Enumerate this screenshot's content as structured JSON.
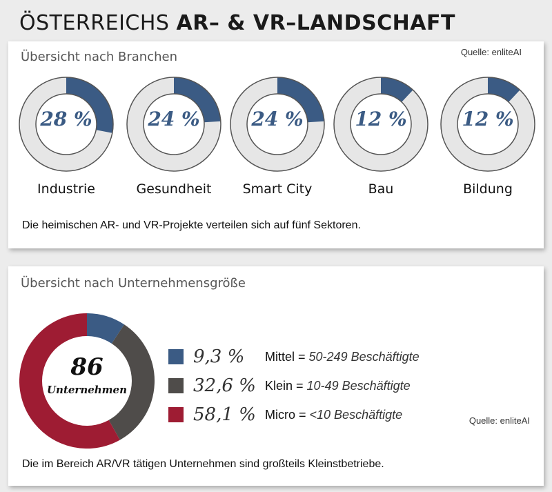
{
  "title": {
    "light": "ÖSTERREICHS",
    "bold": "AR– & VR–LANDSCHAFT"
  },
  "branchen": {
    "subtitle": "Übersicht nach Branchen",
    "source": "Quelle: enliteAI",
    "note": "Die heimischen AR- und VR-Projekte verteilen sich auf fünf Sektoren."
  },
  "groesse": {
    "subtitle": "Übersicht nach Unternehmensgröße",
    "source": "Quelle: enliteAI",
    "note": "Die im Bereich AR/VR tätigen Unternehmen sind großteils Kleinstbetriebe.",
    "center_value": "86",
    "center_label": "Unternehmen"
  },
  "chart_data": [
    {
      "type": "pie",
      "chart": "donut-grid",
      "categories": [
        "Industrie",
        "Gesundheit",
        "Smart City",
        "Bau",
        "Bildung"
      ],
      "values": [
        28,
        24,
        24,
        12,
        12
      ],
      "labels": [
        "28 %",
        "24 %",
        "24 %",
        "12 %",
        "12 %"
      ],
      "fill_color": "#3b5b84",
      "track_color": "#e6e6e6"
    },
    {
      "type": "pie",
      "chart": "donut",
      "values": [
        9.3,
        32.6,
        58.1
      ],
      "labels": [
        "9,3 %",
        "32,6 %",
        "58,1 %"
      ],
      "legend": [
        {
          "name": "Mittel",
          "range": "50-249 Beschäftigte"
        },
        {
          "name": "Klein",
          "range": "10-49 Beschäftigte"
        },
        {
          "name": "Micro",
          "range": "<10 Beschäftigte"
        }
      ],
      "colors": [
        "#3b5b84",
        "#4f4c4a",
        "#9e1c33"
      ],
      "start_angle": 0
    }
  ]
}
